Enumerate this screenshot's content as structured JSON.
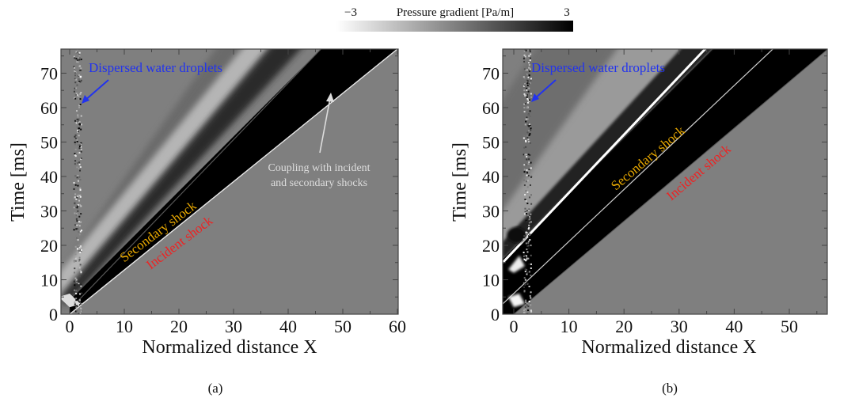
{
  "colorbar": {
    "title": "Pressure gradient [Pa/m]",
    "min_label": "−3",
    "max_label": "3",
    "range": [
      -3,
      3
    ],
    "colormap": "white-to-black grayscale"
  },
  "chart_data": [
    {
      "type": "heatmap",
      "panel_label": "(a)",
      "xlabel": "Normalized distance X",
      "ylabel": "Time [ms]",
      "xlim": [
        -1.6,
        60
      ],
      "ylim": [
        0,
        77
      ],
      "xticks": [
        "0",
        "10",
        "20",
        "30",
        "40",
        "50",
        "60"
      ],
      "yticks": [
        "0",
        "10",
        "20",
        "30",
        "40",
        "50",
        "60",
        "70"
      ],
      "annotations": [
        {
          "text": "Dispersed water droplets",
          "color": "#2233ee"
        },
        {
          "text": "Coupling with incident",
          "color": "#dddddd"
        },
        {
          "text": "and secondary shocks",
          "color": "#dddddd"
        },
        {
          "text": "Secondary shock",
          "color": "#e8a800"
        },
        {
          "text": "Incident shock",
          "color": "#ee2222"
        }
      ]
    },
    {
      "type": "heatmap",
      "panel_label": "(b)",
      "xlabel": "Normalized distance X",
      "ylabel": "Time [ms]",
      "xlim": [
        -2,
        58
      ],
      "ylim": [
        0,
        77
      ],
      "xticks": [
        "0",
        "10",
        "20",
        "30",
        "40",
        "50"
      ],
      "yticks": [
        "0",
        "10",
        "20",
        "30",
        "40",
        "50",
        "60",
        "70"
      ],
      "annotations": [
        {
          "text": "Dispersed water droplets",
          "color": "#2233ee"
        },
        {
          "text": "Secondary shock",
          "color": "#e8a800"
        },
        {
          "text": "Incident shock",
          "color": "#ee2222"
        }
      ]
    }
  ]
}
